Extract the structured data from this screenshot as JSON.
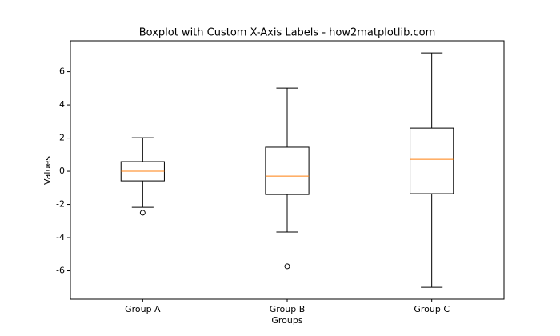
{
  "chart_data": {
    "type": "boxplot",
    "title": "Boxplot with Custom X-Axis Labels - how2matplotlib.com",
    "x_label": "Groups",
    "y_label": "Values",
    "categories": [
      "Group A",
      "Group B",
      "Group C"
    ],
    "boxes": [
      {
        "whislo": -2.17,
        "q1": -0.58,
        "med": 0.0,
        "q3": 0.58,
        "whishi": 2.02,
        "fliers": [
          -2.5
        ]
      },
      {
        "whislo": -3.66,
        "q1": -1.4,
        "med": -0.29,
        "q3": 1.45,
        "whishi": 5.01,
        "fliers": [
          -5.73
        ]
      },
      {
        "whislo": -6.99,
        "q1": -1.35,
        "med": 0.72,
        "q3": 2.6,
        "whishi": 7.13,
        "fliers": []
      }
    ],
    "box_color": "#000000",
    "median_color": "#ff7f0e",
    "ylim": [
      -7.71,
      7.86
    ],
    "yticks": [
      -6,
      -4,
      -2,
      0,
      2,
      4,
      6
    ],
    "grid": false
  }
}
